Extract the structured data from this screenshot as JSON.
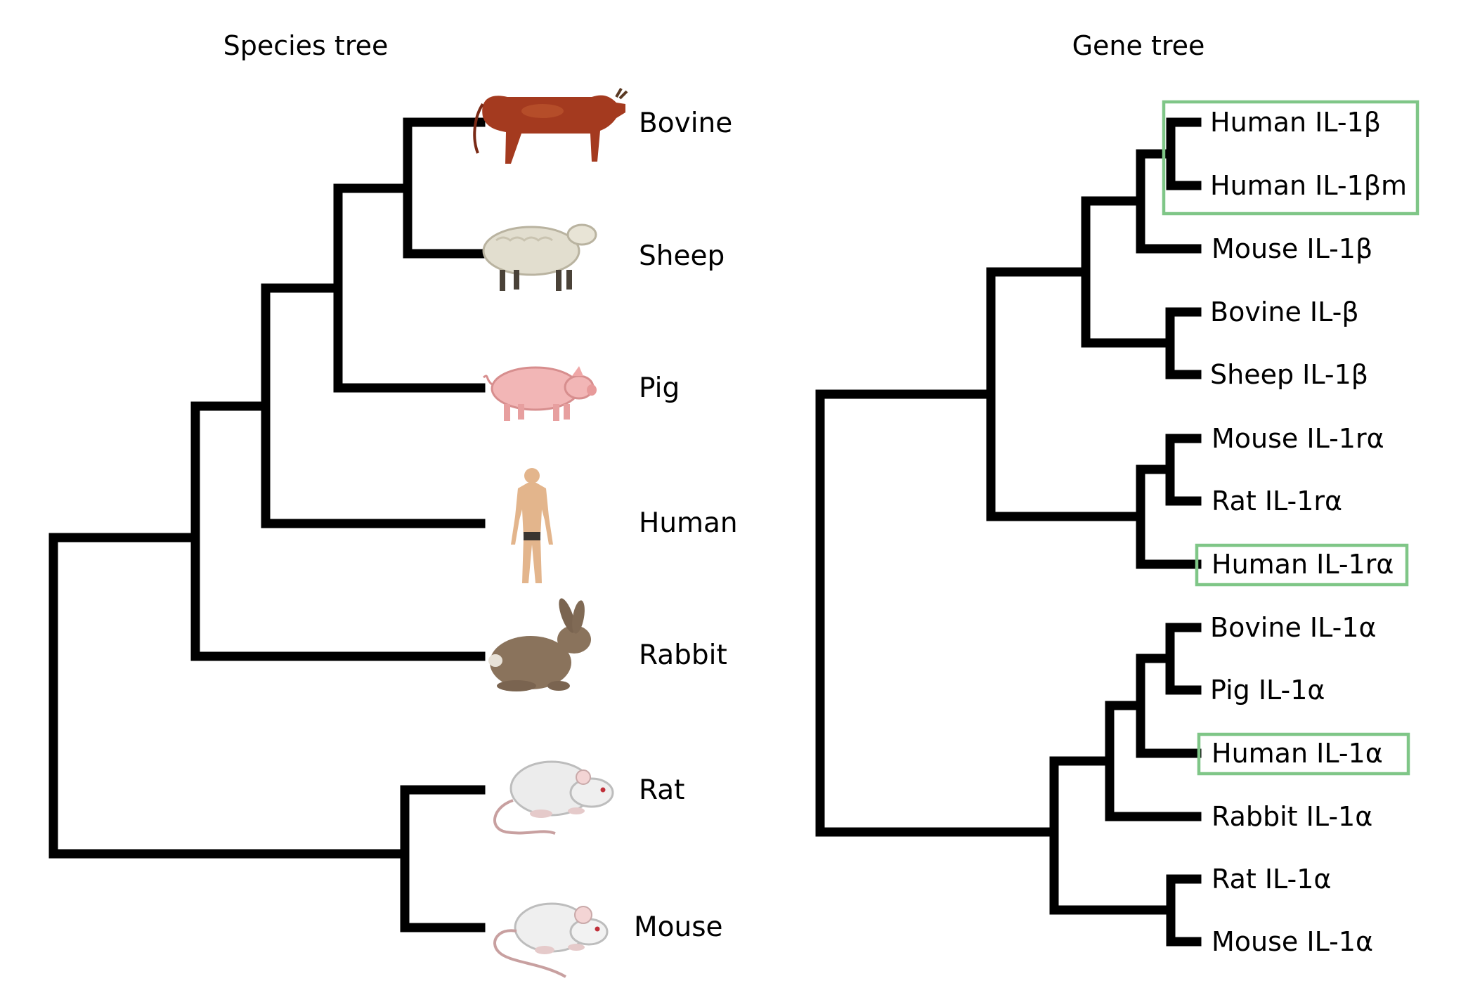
{
  "species_tree": {
    "title": "Species tree",
    "species": [
      {
        "label": "Bovine",
        "icon": "cow-icon"
      },
      {
        "label": "Sheep",
        "icon": "sheep-icon"
      },
      {
        "label": "Pig",
        "icon": "pig-icon"
      },
      {
        "label": "Human",
        "icon": "human-icon"
      },
      {
        "label": "Rabbit",
        "icon": "rabbit-icon"
      },
      {
        "label": "Rat",
        "icon": "rat-icon"
      },
      {
        "label": "Mouse",
        "icon": "mouse-icon"
      }
    ]
  },
  "gene_tree": {
    "title": "Gene tree",
    "genes": [
      {
        "label": "Human IL-1β"
      },
      {
        "label": "Human IL-1βm"
      },
      {
        "label": "Mouse IL-1β"
      },
      {
        "label": "Bovine IL-β"
      },
      {
        "label": "Sheep IL-1β"
      },
      {
        "label": "Mouse IL-1rα"
      },
      {
        "label": "Rat IL-1rα"
      },
      {
        "label": "Human IL-1rα"
      },
      {
        "label": "Bovine IL-1α"
      },
      {
        "label": "Pig IL-1α"
      },
      {
        "label": "Human IL-1α"
      },
      {
        "label": "Rabbit IL-1α"
      },
      {
        "label": "Rat IL-1α"
      },
      {
        "label": "Mouse IL-1α"
      }
    ],
    "highlighted": [
      "Human IL-1β",
      "Human IL-1βm",
      "Human IL-1rα",
      "Human IL-1α"
    ]
  },
  "colors": {
    "branch": "#000000",
    "highlight_box": "#7fc687"
  }
}
